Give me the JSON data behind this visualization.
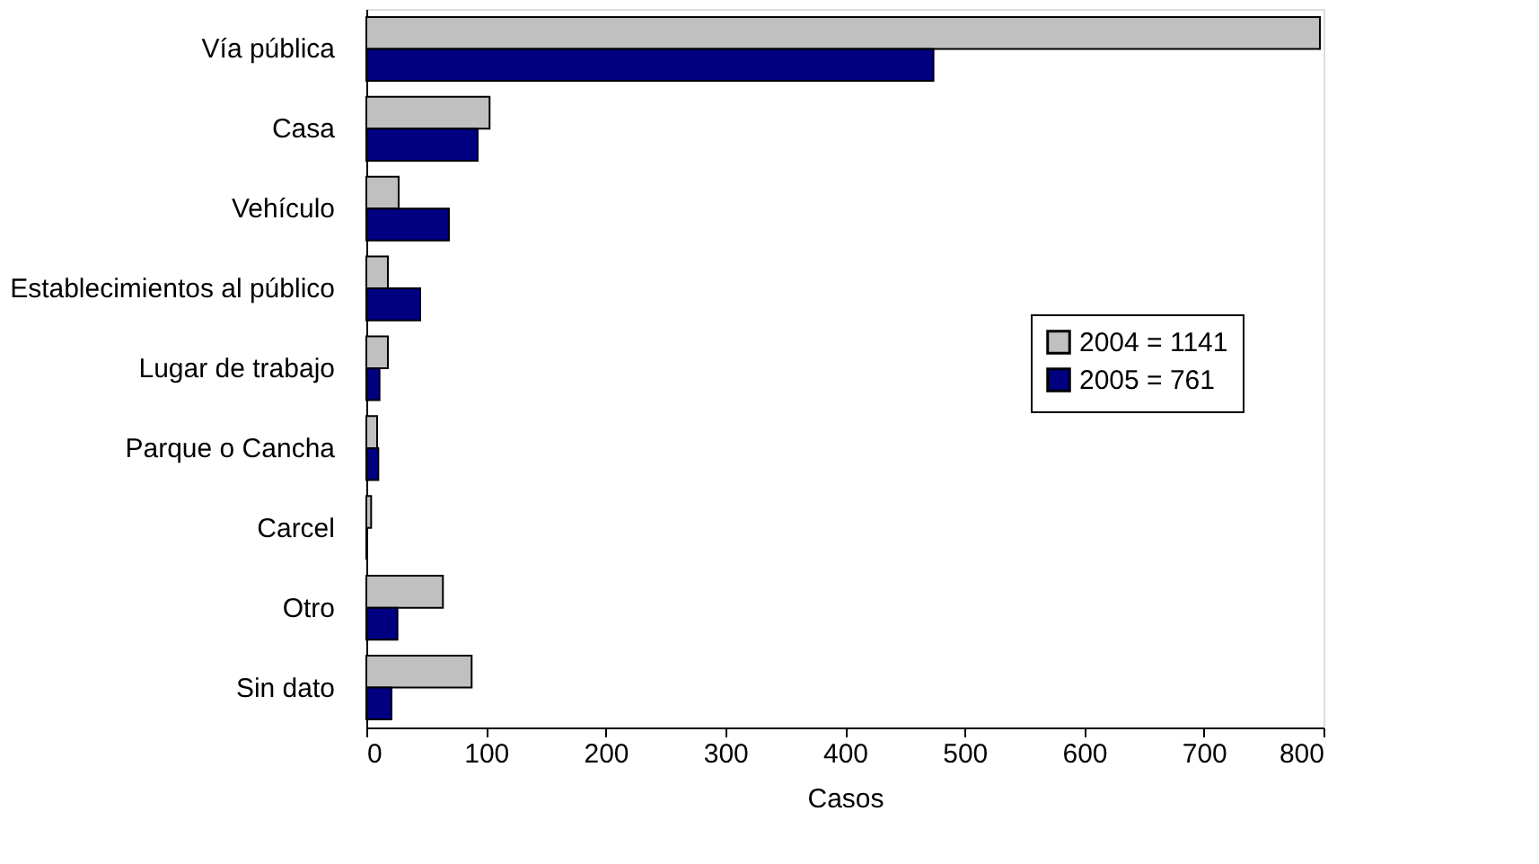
{
  "chart_data": {
    "type": "bar",
    "orientation": "horizontal",
    "xlabel": "Casos",
    "categories": [
      "Vía pública",
      "Casa",
      "Vehículo",
      "Establecimientos al público",
      "Lugar de trabajo",
      "Parque o Cancha",
      "Carcel",
      "Otro",
      "Sin dato"
    ],
    "series": [
      {
        "name": "2004 = 1141",
        "color": "#c0c0c0",
        "values": [
          797,
          103,
          27,
          18,
          18,
          9,
          4,
          64,
          88
        ]
      },
      {
        "name": "2005 = 761",
        "color": "#000080",
        "values": [
          474,
          93,
          69,
          45,
          11,
          10,
          0,
          26,
          21
        ]
      }
    ],
    "xlim": [
      0,
      800
    ],
    "xticks": [
      0,
      100,
      200,
      300,
      400,
      500,
      600,
      700,
      800
    ],
    "grid": false,
    "legend": "right"
  }
}
